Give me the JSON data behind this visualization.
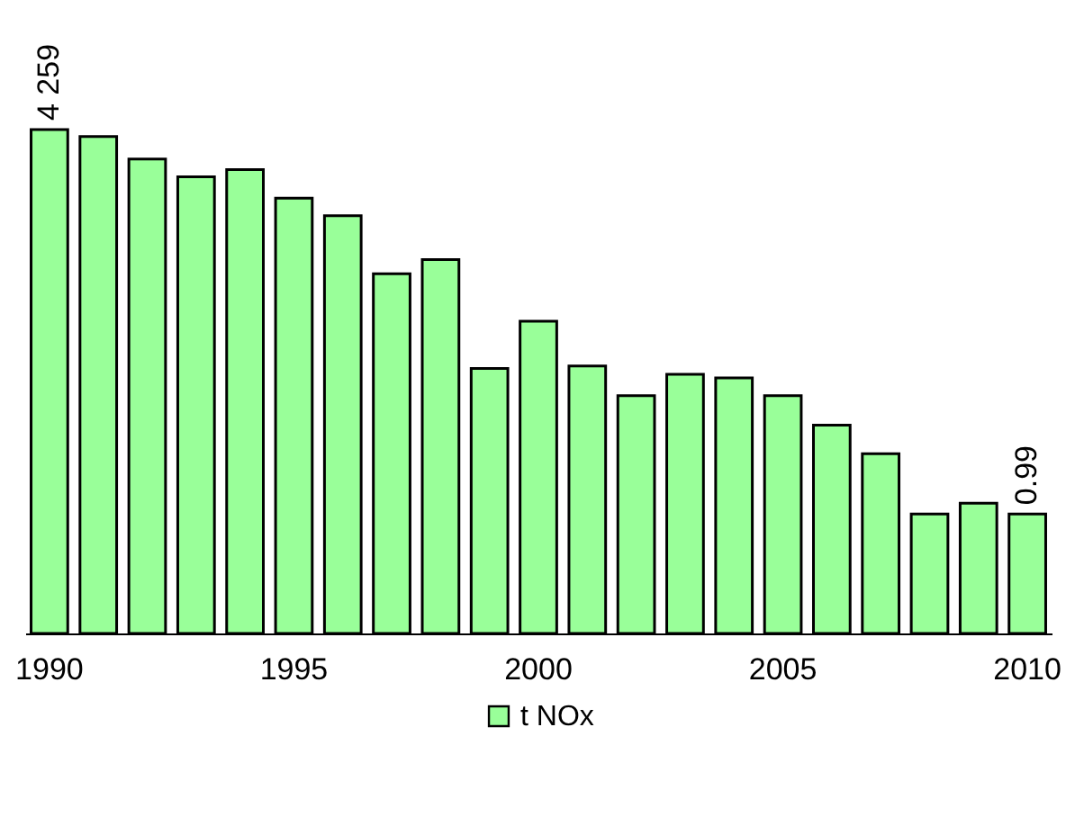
{
  "chart_data": {
    "type": "bar",
    "categories": [
      "1990",
      null,
      null,
      null,
      null,
      "1995",
      null,
      null,
      null,
      null,
      "2000",
      null,
      null,
      null,
      null,
      "2005",
      null,
      null,
      null,
      null,
      "2010"
    ],
    "series": [
      {
        "name": "t NOx",
        "color": "#99ff99",
        "values": [
          4259,
          4200,
          4010,
          3860,
          3920,
          3680,
          3530,
          3040,
          3160,
          2240,
          2640,
          2260,
          2010,
          2190,
          2160,
          2010,
          1760,
          1520,
          1010,
          1100,
          1010
        ],
        "value_labels": [
          "4 259",
          null,
          null,
          null,
          null,
          null,
          null,
          null,
          null,
          null,
          null,
          null,
          null,
          null,
          null,
          null,
          null,
          null,
          null,
          null,
          null
        ]
      }
    ],
    "annotations": [
      {
        "text": "0.99",
        "x": "2010",
        "y": 1010
      }
    ],
    "ylim": [
      0,
      4259
    ],
    "tick_labels": "x",
    "legend": "bottom"
  }
}
